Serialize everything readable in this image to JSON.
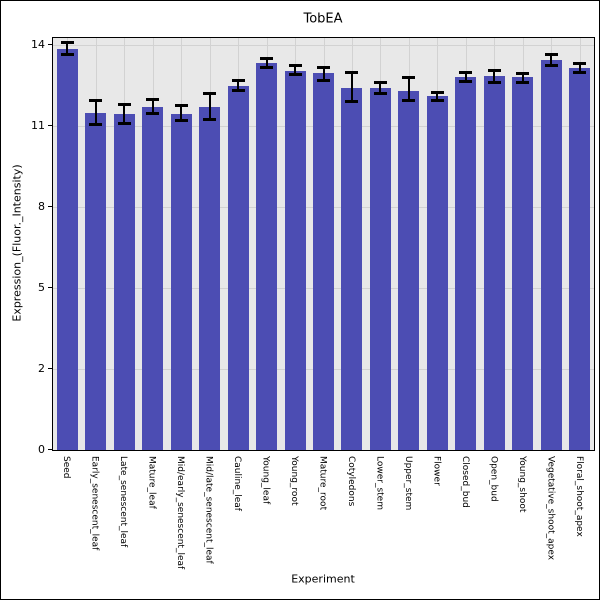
{
  "figure": {
    "background": "#ffffff",
    "border_color": "#000000"
  },
  "chart_data": {
    "type": "bar",
    "title": "TobEA",
    "xlabel": "Experiment",
    "ylabel": "Expression_(Fluor._Intensity)",
    "y_ticks": [
      0,
      2,
      5,
      8,
      11,
      14
    ],
    "ylim": [
      0,
      14.5
    ],
    "grid": true,
    "legend": "none",
    "plot_background": "#e8e8e8",
    "gridline_color": "#d2d2d2",
    "bar_color": "#4c4db3",
    "error_bar_color": "#000000",
    "axis_color": "#000000",
    "categories": [
      "Seed",
      "Early_senescent_leaf",
      "Late_senescent_leaf",
      "Mature_leaf",
      "Mid/early_senescent_leaf",
      "Mid/late_senescent_leaf",
      "Cauline_leaf",
      "Young_leaf",
      "Young_root",
      "Mature_root",
      "Cotyledons",
      "Lower_stem",
      "Upper_stem",
      "Flower",
      "Closed_bud",
      "Open_bud",
      "Young_shoot",
      "Vegetative_shoot_apex",
      "Floral_shoot_apex"
    ],
    "series": [
      {
        "name": "Expression_(Fluor._Intensity)",
        "values": [
          13.85,
          11.5,
          11.45,
          11.7,
          11.45,
          11.7,
          12.5,
          13.35,
          13.05,
          12.95,
          12.4,
          12.4,
          12.3,
          12.1,
          12.8,
          12.85,
          12.8,
          13.45,
          13.15
        ],
        "error_low": [
          13.65,
          11.05,
          11.1,
          11.45,
          11.2,
          11.25,
          12.3,
          13.15,
          12.9,
          12.7,
          11.9,
          12.2,
          11.95,
          11.95,
          12.65,
          12.6,
          12.6,
          13.25,
          13.0
        ],
        "error_high": [
          14.1,
          11.95,
          11.8,
          12.0,
          11.75,
          12.2,
          12.7,
          13.5,
          13.25,
          13.15,
          13.0,
          12.6,
          12.8,
          12.25,
          13.0,
          13.05,
          12.95,
          13.65,
          13.3
        ]
      }
    ]
  }
}
